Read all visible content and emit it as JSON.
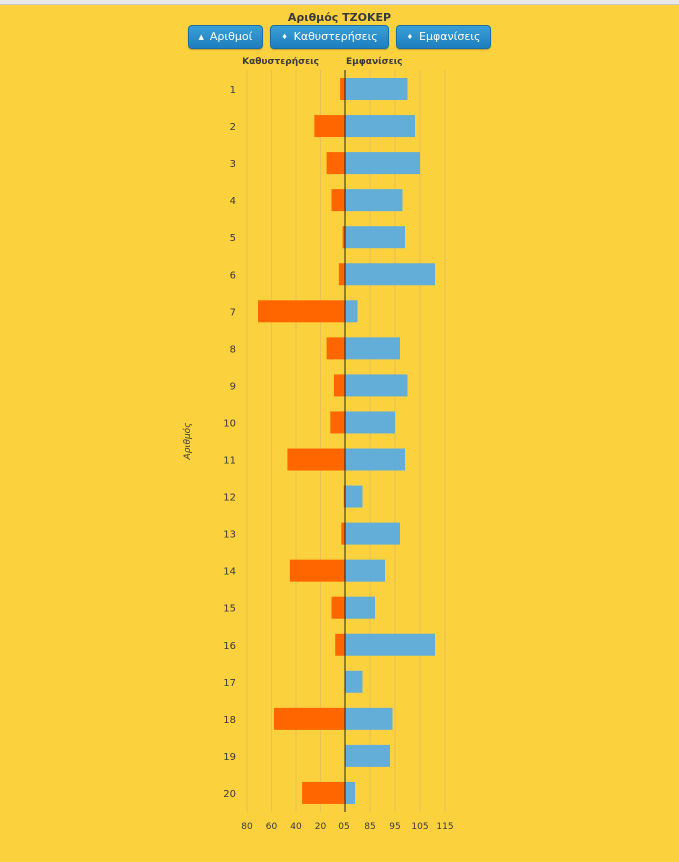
{
  "title": "Αριθμός ΤΖΟΚΕΡ",
  "buttons": [
    {
      "label": "Αριθμοί",
      "icon": "sort-asc-icon",
      "glyph": "▲"
    },
    {
      "label": "Καθυστερήσεις",
      "icon": "sort-both-icon",
      "glyph": "♦"
    },
    {
      "label": "Εμφανίσεις",
      "icon": "sort-both-icon",
      "glyph": "♦"
    }
  ],
  "chart_data": {
    "type": "bar",
    "orientation": "horizontal-diverging",
    "ylabel": "Αριθμός",
    "categories": [
      "1",
      "2",
      "3",
      "4",
      "5",
      "6",
      "7",
      "8",
      "9",
      "10",
      "11",
      "12",
      "13",
      "14",
      "15",
      "16",
      "17",
      "18",
      "19",
      "20"
    ],
    "left_axis": {
      "label": "Καθυστερήσεις",
      "ticks": [
        "80",
        "60",
        "40",
        "20",
        "0"
      ],
      "range": [
        0,
        80
      ]
    },
    "right_axis": {
      "label": "Εμφανίσεις",
      "ticks": [
        "75",
        "85",
        "95",
        "105",
        "115"
      ],
      "range": [
        75,
        115
      ]
    },
    "series": [
      {
        "name": "Καθυστερήσεις",
        "color": "#ff6600",
        "values": [
          4,
          25,
          15,
          11,
          2,
          5,
          71,
          15,
          9,
          12,
          47,
          1,
          3,
          45,
          11,
          8,
          0,
          58,
          0,
          35
        ]
      },
      {
        "name": "Εμφανίσεις",
        "color": "#63aed9",
        "values": [
          100,
          103,
          105,
          98,
          99,
          111,
          80,
          97,
          100,
          95,
          99,
          82,
          97,
          91,
          87,
          111,
          82,
          94,
          93,
          79
        ]
      }
    ],
    "grid": true
  }
}
